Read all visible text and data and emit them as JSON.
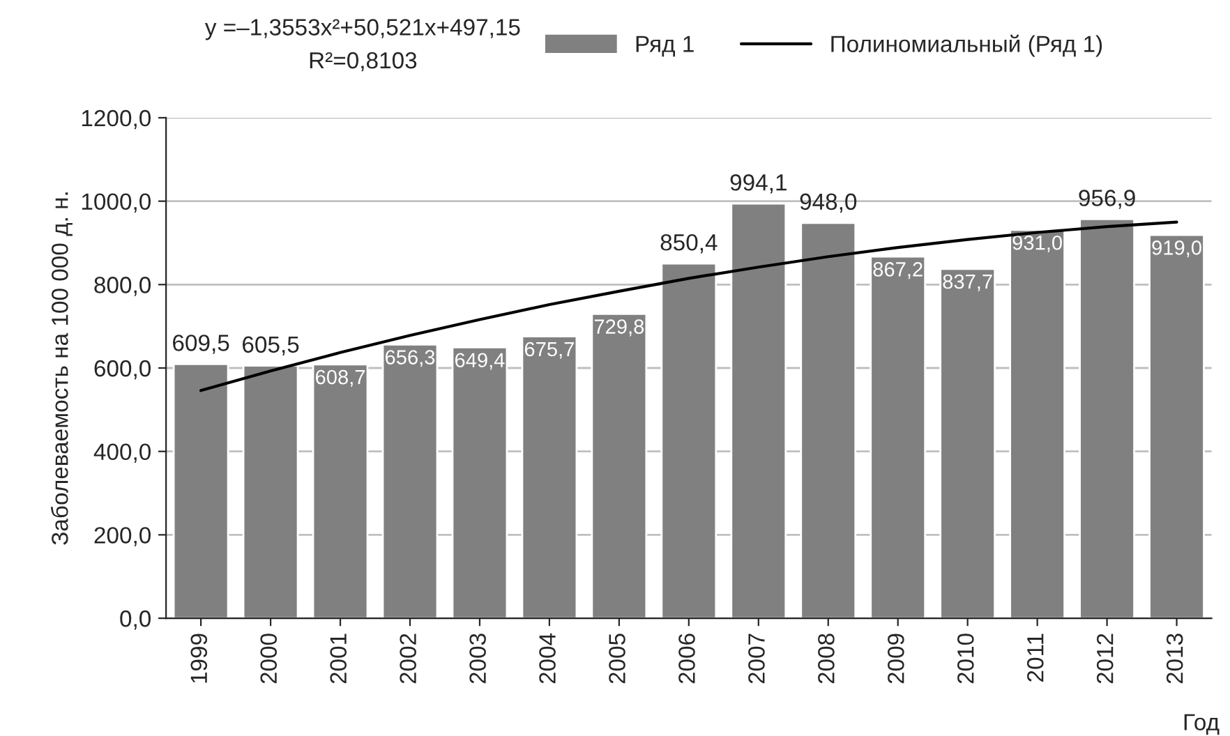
{
  "chart_data": {
    "type": "bar",
    "categories": [
      "1999",
      "2000",
      "2001",
      "2002",
      "2003",
      "2004",
      "2005",
      "2006",
      "2007",
      "2008",
      "2009",
      "2010",
      "2011",
      "2012",
      "2013"
    ],
    "series": [
      {
        "name": "Ряд 1",
        "color": "#808080",
        "values": [
          609.5,
          605.5,
          608.7,
          656.3,
          649.4,
          675.7,
          729.8,
          850.4,
          994.1,
          948.0,
          867.2,
          837.7,
          931.0,
          956.9,
          919.0
        ],
        "value_labels": [
          "609,5",
          "605,5",
          "608,7",
          "656,3",
          "649,4",
          "675,7",
          "729,8",
          "850,4",
          "994,1",
          "948,0",
          "867,2",
          "837,7",
          "931,0",
          "956,9",
          "919,0"
        ]
      },
      {
        "name": "Полиномиальный (Ряд 1)",
        "type": "line",
        "color": "#000000",
        "values": [
          546,
          593,
          637,
          678,
          716,
          752,
          784,
          815,
          842,
          867,
          889,
          908,
          925,
          939,
          950
        ]
      }
    ],
    "ylim": [
      0,
      1200
    ],
    "yticks": [
      {
        "value": 0,
        "label": "0,0"
      },
      {
        "value": 200,
        "label": "200,0"
      },
      {
        "value": 400,
        "label": "400,0"
      },
      {
        "value": 600,
        "label": "600,0"
      },
      {
        "value": 800,
        "label": "800,0"
      },
      {
        "value": 1000,
        "label": "1000,0"
      },
      {
        "value": 1200,
        "label": "1200,0"
      }
    ],
    "xlabel": "Год",
    "ylabel": "Заболеваемость на 100 000 д. н.",
    "annotations": [
      "y =–1,3553x²+50,521x+497,15",
      "R²=0,8103"
    ],
    "grid": "y",
    "legend": "top",
    "marker": "none",
    "line_style": "solid"
  }
}
